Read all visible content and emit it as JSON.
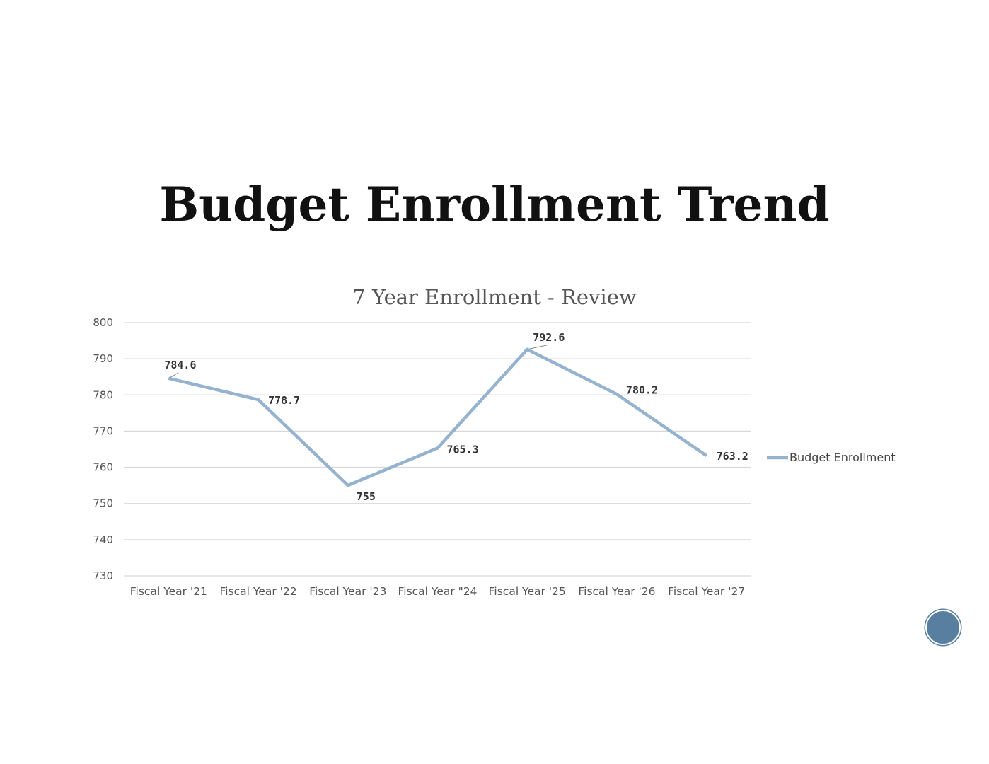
{
  "slide": {
    "title": "Budget Enrollment Trend"
  },
  "chart_data": {
    "type": "line",
    "title": "7 Year Enrollment - Review",
    "categories": [
      "Fiscal Year '21",
      "Fiscal Year '22",
      "Fiscal Year '23",
      "Fiscal Year \"24",
      "Fiscal Year '25",
      "Fiscal Year '26",
      "Fiscal Year '27"
    ],
    "series": [
      {
        "name": "Budget Enrollment",
        "values": [
          784.6,
          778.7,
          755,
          765.3,
          792.6,
          780.2,
          763.2
        ],
        "labels": [
          "784.6",
          "778.7",
          "755",
          "765.3",
          "792.6",
          "780.2",
          "763.2"
        ],
        "color": "#95b3cf"
      }
    ],
    "ylim": [
      730,
      800
    ],
    "yticks": [
      "730",
      "740",
      "750",
      "760",
      "770",
      "780",
      "790",
      "800"
    ],
    "grid": true,
    "legend": "right",
    "xlabel": "",
    "ylabel": ""
  },
  "colors": {
    "badge": "#587f9f",
    "grid": "#d9d9d9"
  }
}
